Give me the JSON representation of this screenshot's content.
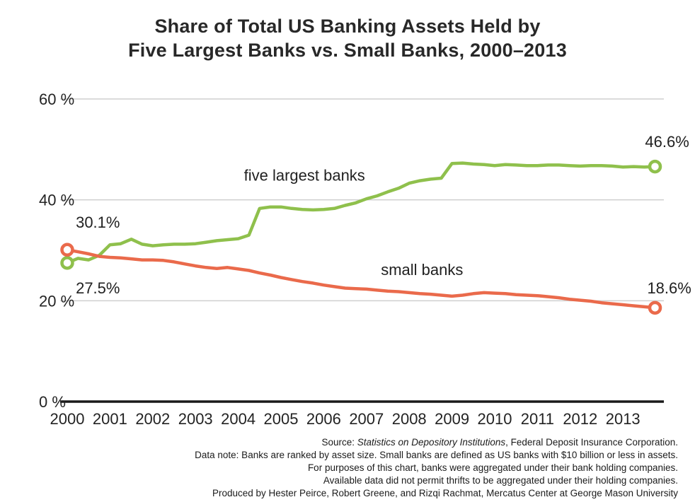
{
  "title": {
    "line1": "Share of Total US Banking Assets Held by",
    "line2": "Five Largest Banks vs. Small Banks, 2000–2013"
  },
  "chart_data": {
    "type": "line",
    "x_start": 2000,
    "x_step": 0.25,
    "xlim": [
      2000,
      2013.75
    ],
    "ylim": [
      0,
      60
    ],
    "grid": true,
    "legend_position": "inline-annotations",
    "x_tick_labels": [
      "2000",
      "2001",
      "2002",
      "2003",
      "2004",
      "2005",
      "2006",
      "2007",
      "2008",
      "2009",
      "2010",
      "2011",
      "2012",
      "2013"
    ],
    "y_ticks": [
      0,
      20,
      40,
      60
    ],
    "y_tick_labels": [
      "0 %",
      "20 %",
      "40 %",
      "60 %"
    ],
    "series": [
      {
        "name": "five largest banks",
        "color": "#8fc04c",
        "marker": "open-circle",
        "first_value_label": "27.5%",
        "last_value_label": "46.6%",
        "values": [
          27.5,
          28.4,
          28.1,
          29.0,
          31.1,
          31.3,
          32.2,
          31.2,
          30.9,
          31.1,
          31.2,
          31.2,
          31.3,
          31.6,
          31.9,
          32.1,
          32.3,
          33.0,
          38.3,
          38.6,
          38.6,
          38.3,
          38.1,
          38.0,
          38.1,
          38.3,
          38.9,
          39.4,
          40.2,
          40.8,
          41.6,
          42.3,
          43.3,
          43.8,
          44.1,
          44.3,
          47.2,
          47.3,
          47.1,
          47.0,
          46.8,
          47.0,
          46.9,
          46.8,
          46.8,
          46.9,
          46.9,
          46.8,
          46.7,
          46.8,
          46.8,
          46.7,
          46.5,
          46.6,
          46.5,
          46.6
        ]
      },
      {
        "name": "small banks",
        "color": "#ea6a4b",
        "marker": "open-circle",
        "first_value_label": "30.1%",
        "last_value_label": "18.6%",
        "values": [
          30.1,
          29.7,
          29.3,
          28.8,
          28.6,
          28.5,
          28.3,
          28.1,
          28.1,
          28.0,
          27.7,
          27.3,
          26.9,
          26.6,
          26.4,
          26.6,
          26.3,
          26.0,
          25.5,
          25.1,
          24.6,
          24.2,
          23.8,
          23.5,
          23.1,
          22.8,
          22.5,
          22.4,
          22.3,
          22.1,
          21.9,
          21.8,
          21.6,
          21.4,
          21.3,
          21.1,
          20.9,
          21.1,
          21.4,
          21.6,
          21.5,
          21.4,
          21.2,
          21.1,
          21.0,
          20.8,
          20.6,
          20.3,
          20.1,
          19.9,
          19.6,
          19.4,
          19.2,
          19.0,
          18.8,
          18.6
        ]
      }
    ],
    "annotations": [
      {
        "text": "30.1%",
        "x": 2000.2,
        "y": 35.6,
        "anchor": "start"
      },
      {
        "text": "27.5%",
        "x": 2000.2,
        "y": 22.6,
        "anchor": "start"
      },
      {
        "text": "five largest banks",
        "x": 2005.55,
        "y": 44.9,
        "anchor": "middle"
      },
      {
        "text": "small banks",
        "x": 2008.3,
        "y": 26.2,
        "anchor": "middle"
      },
      {
        "text": "46.6%",
        "x": 2014.55,
        "y": 51.6,
        "anchor": "end"
      },
      {
        "text": "18.6%",
        "x": 2014.6,
        "y": 22.6,
        "anchor": "end"
      }
    ]
  },
  "footer": {
    "source_prefix": "Source: ",
    "source_italic": "Statistics on Depository Institutions",
    "source_suffix": ", Federal Deposit Insurance Corporation.",
    "lines": [
      "Data note: Banks are ranked by asset size. Small banks are defined as US banks with $10 billion or less in assets.",
      "For purposes of this chart, banks were aggregated under their bank holding companies.",
      "Available data did not permit thrifts to be aggregated under their holding companies.",
      "Produced by Hester Peirce, Robert Greene, and Rizqi Rachmat, Mercatus Center at George Mason University"
    ]
  },
  "colors": {
    "five_largest": "#8fc04c",
    "small_banks": "#ea6a4b",
    "gridline": "#cfcfcf",
    "axis": "#1a1a1a",
    "text": "#232323"
  }
}
